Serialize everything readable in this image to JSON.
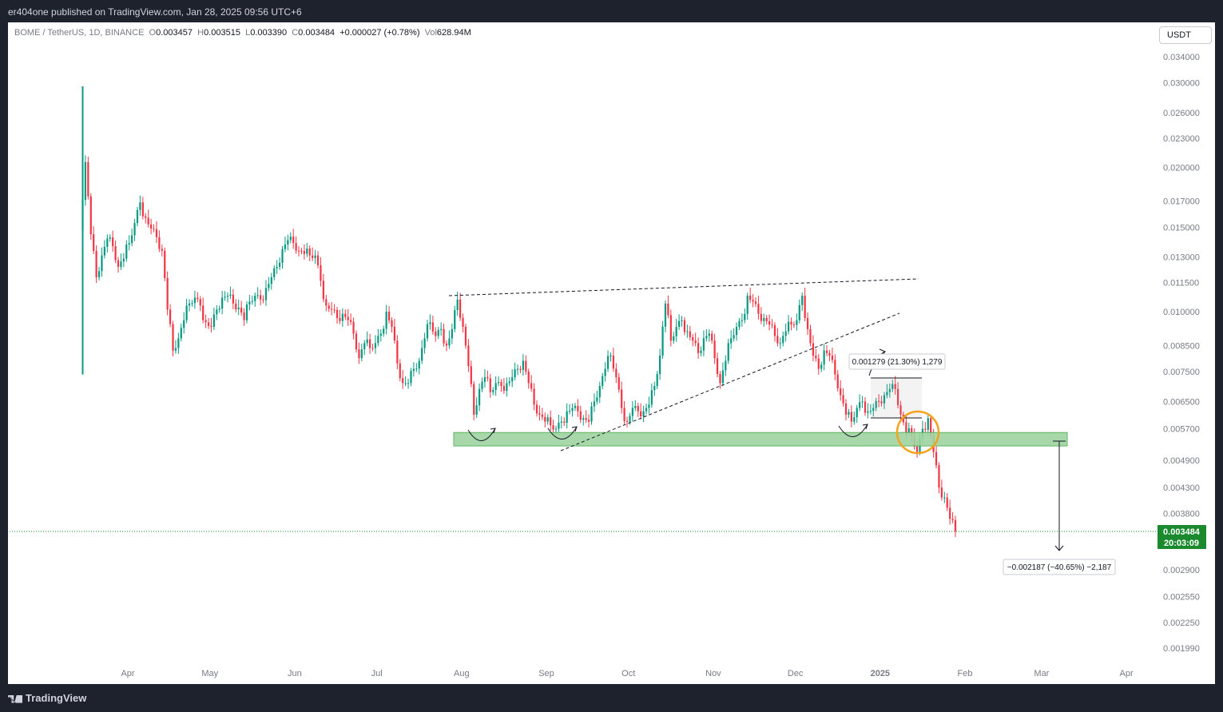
{
  "header": {
    "published": "er404one published on TradingView.com, Jan 28, 2025 09:56 UTC+6"
  },
  "legend": {
    "symbol": "BOME / TetherUS, 1D, BINANCE",
    "o_label": "O",
    "o": "0.003457",
    "h_label": "H",
    "h": "0.003515",
    "l_label": "L",
    "l": "0.003390",
    "c_label": "C",
    "c": "0.003484",
    "change": "+0.000027 (+0.78%)",
    "vol_label": "Vol",
    "vol": "628.94M"
  },
  "currency_button": "USDT",
  "footer": {
    "brand": "TradingView"
  },
  "colors": {
    "up": "#089981",
    "down": "#f23645",
    "support_zone": "#9fd4a0",
    "highlight_circle": "#f7a21b",
    "price_badge": "#1b8a2f"
  },
  "chart_data": {
    "type": "candlestick",
    "symbol": "BOME/USDT",
    "interval": "1D",
    "y_scale": "log",
    "y_ticks": [
      "0.034000",
      "0.030000",
      "0.026000",
      "0.023000",
      "0.020000",
      "0.017000",
      "0.015000",
      "0.013000",
      "0.011500",
      "0.010000",
      "0.008500",
      "0.007500",
      "0.006500",
      "0.005700",
      "0.004900",
      "0.004300",
      "0.003800",
      "0.002900",
      "0.002550",
      "0.002250",
      "0.001990"
    ],
    "x_ticks": [
      "Apr",
      "May",
      "Jun",
      "Jul",
      "Aug",
      "Sep",
      "Oct",
      "Nov",
      "Dec",
      "2025",
      "Feb",
      "Mar",
      "Apr"
    ],
    "current_price": "0.003484",
    "countdown": "20:03:09",
    "support_zone": {
      "low": 0.00525,
      "high": 0.0056
    },
    "measure_up": {
      "label": "0.001279 (21.30%) 1,279"
    },
    "measure_down": {
      "label": "−0.002187 (−40.65%) −2,187"
    },
    "series": [
      {
        "t": "2024-03-16",
        "c": 0.0205
      },
      {
        "t": "2024-03-18",
        "c": 0.0145
      },
      {
        "t": "2024-03-20",
        "c": 0.0118
      },
      {
        "t": "2024-03-22",
        "c": 0.0131
      },
      {
        "t": "2024-03-24",
        "c": 0.0142
      },
      {
        "t": "2024-03-26",
        "c": 0.0137
      },
      {
        "t": "2024-03-28",
        "c": 0.0124
      },
      {
        "t": "2024-03-30",
        "c": 0.0129
      },
      {
        "t": "2024-04-01",
        "c": 0.0139
      },
      {
        "t": "2024-04-03",
        "c": 0.0153
      },
      {
        "t": "2024-04-05",
        "c": 0.0169
      },
      {
        "t": "2024-04-07",
        "c": 0.0157
      },
      {
        "t": "2024-04-09",
        "c": 0.0149
      },
      {
        "t": "2024-04-11",
        "c": 0.0143
      },
      {
        "t": "2024-04-13",
        "c": 0.0134
      },
      {
        "t": "2024-04-15",
        "c": 0.0101
      },
      {
        "t": "2024-04-17",
        "c": 0.0083
      },
      {
        "t": "2024-04-19",
        "c": 0.0088
      },
      {
        "t": "2024-04-21",
        "c": 0.0096
      },
      {
        "t": "2024-04-23",
        "c": 0.0104
      },
      {
        "t": "2024-04-25",
        "c": 0.0107
      },
      {
        "t": "2024-04-27",
        "c": 0.0103
      },
      {
        "t": "2024-04-29",
        "c": 0.0095
      },
      {
        "t": "2024-05-01",
        "c": 0.0093
      },
      {
        "t": "2024-05-03",
        "c": 0.0101
      },
      {
        "t": "2024-05-05",
        "c": 0.0107
      },
      {
        "t": "2024-05-07",
        "c": 0.0108
      },
      {
        "t": "2024-05-09",
        "c": 0.0104
      },
      {
        "t": "2024-05-11",
        "c": 0.0102
      },
      {
        "t": "2024-05-13",
        "c": 0.0096
      },
      {
        "t": "2024-05-15",
        "c": 0.0105
      },
      {
        "t": "2024-05-17",
        "c": 0.0108
      },
      {
        "t": "2024-05-19",
        "c": 0.0106
      },
      {
        "t": "2024-05-21",
        "c": 0.0112
      },
      {
        "t": "2024-05-23",
        "c": 0.0118
      },
      {
        "t": "2024-05-25",
        "c": 0.0124
      },
      {
        "t": "2024-05-27",
        "c": 0.0135
      },
      {
        "t": "2024-05-29",
        "c": 0.0141
      },
      {
        "t": "2024-05-31",
        "c": 0.0139
      },
      {
        "t": "2024-06-02",
        "c": 0.0134
      },
      {
        "t": "2024-06-04",
        "c": 0.0132
      },
      {
        "t": "2024-06-06",
        "c": 0.0131
      },
      {
        "t": "2024-06-08",
        "c": 0.0131
      },
      {
        "t": "2024-06-10",
        "c": 0.0116
      },
      {
        "t": "2024-06-12",
        "c": 0.0103
      },
      {
        "t": "2024-06-14",
        "c": 0.0101
      },
      {
        "t": "2024-06-16",
        "c": 0.0097
      },
      {
        "t": "2024-06-18",
        "c": 0.0099
      },
      {
        "t": "2024-06-20",
        "c": 0.0096
      },
      {
        "t": "2024-06-22",
        "c": 0.009
      },
      {
        "t": "2024-06-24",
        "c": 0.008
      },
      {
        "t": "2024-06-26",
        "c": 0.0086
      },
      {
        "t": "2024-06-28",
        "c": 0.0084
      },
      {
        "t": "2024-06-30",
        "c": 0.0086
      },
      {
        "t": "2024-07-02",
        "c": 0.009
      },
      {
        "t": "2024-07-04",
        "c": 0.01
      },
      {
        "t": "2024-07-06",
        "c": 0.0093
      },
      {
        "t": "2024-07-08",
        "c": 0.0078
      },
      {
        "t": "2024-07-10",
        "c": 0.0071
      },
      {
        "t": "2024-07-12",
        "c": 0.0071
      },
      {
        "t": "2024-07-14",
        "c": 0.0076
      },
      {
        "t": "2024-07-16",
        "c": 0.0079
      },
      {
        "t": "2024-07-18",
        "c": 0.0088
      },
      {
        "t": "2024-07-20",
        "c": 0.0095
      },
      {
        "t": "2024-07-22",
        "c": 0.0089
      },
      {
        "t": "2024-07-24",
        "c": 0.0092
      },
      {
        "t": "2024-07-26",
        "c": 0.0085
      },
      {
        "t": "2024-07-28",
        "c": 0.0092
      },
      {
        "t": "2024-07-30",
        "c": 0.0106
      },
      {
        "t": "2024-08-01",
        "c": 0.0093
      },
      {
        "t": "2024-08-03",
        "c": 0.0077
      },
      {
        "t": "2024-08-05",
        "c": 0.0061
      },
      {
        "t": "2024-08-07",
        "c": 0.0069
      },
      {
        "t": "2024-08-09",
        "c": 0.0073
      },
      {
        "t": "2024-08-11",
        "c": 0.0068
      },
      {
        "t": "2024-08-13",
        "c": 0.0071
      },
      {
        "t": "2024-08-15",
        "c": 0.007
      },
      {
        "t": "2024-08-17",
        "c": 0.0071
      },
      {
        "t": "2024-08-19",
        "c": 0.0073
      },
      {
        "t": "2024-08-21",
        "c": 0.0076
      },
      {
        "t": "2024-08-23",
        "c": 0.0079
      },
      {
        "t": "2024-08-25",
        "c": 0.0071
      },
      {
        "t": "2024-08-27",
        "c": 0.0064
      },
      {
        "t": "2024-08-29",
        "c": 0.0061
      },
      {
        "t": "2024-08-31",
        "c": 0.0059
      },
      {
        "t": "2024-09-02",
        "c": 0.0058
      },
      {
        "t": "2024-09-04",
        "c": 0.0057
      },
      {
        "t": "2024-09-06",
        "c": 0.0059
      },
      {
        "t": "2024-09-08",
        "c": 0.0062
      },
      {
        "t": "2024-09-10",
        "c": 0.0063
      },
      {
        "t": "2024-09-12",
        "c": 0.0062
      },
      {
        "t": "2024-09-14",
        "c": 0.006
      },
      {
        "t": "2024-09-16",
        "c": 0.0059
      },
      {
        "t": "2024-09-18",
        "c": 0.0065
      },
      {
        "t": "2024-09-20",
        "c": 0.007
      },
      {
        "t": "2024-09-22",
        "c": 0.0076
      },
      {
        "t": "2024-09-24",
        "c": 0.0081
      },
      {
        "t": "2024-09-26",
        "c": 0.0073
      },
      {
        "t": "2024-09-28",
        "c": 0.0063
      },
      {
        "t": "2024-09-30",
        "c": 0.0059
      },
      {
        "t": "2024-10-02",
        "c": 0.0063
      },
      {
        "t": "2024-10-04",
        "c": 0.0062
      },
      {
        "t": "2024-10-06",
        "c": 0.0062
      },
      {
        "t": "2024-10-08",
        "c": 0.0064
      },
      {
        "t": "2024-10-10",
        "c": 0.007
      },
      {
        "t": "2024-10-12",
        "c": 0.0081
      },
      {
        "t": "2024-10-14",
        "c": 0.0104
      },
      {
        "t": "2024-10-16",
        "c": 0.0087
      },
      {
        "t": "2024-10-18",
        "c": 0.0093
      },
      {
        "t": "2024-10-20",
        "c": 0.0096
      },
      {
        "t": "2024-10-22",
        "c": 0.0091
      },
      {
        "t": "2024-10-24",
        "c": 0.0087
      },
      {
        "t": "2024-10-26",
        "c": 0.0082
      },
      {
        "t": "2024-10-28",
        "c": 0.0088
      },
      {
        "t": "2024-10-30",
        "c": 0.009
      },
      {
        "t": "2024-11-01",
        "c": 0.008
      },
      {
        "t": "2024-11-03",
        "c": 0.0071
      },
      {
        "t": "2024-11-05",
        "c": 0.0079
      },
      {
        "t": "2024-11-07",
        "c": 0.0088
      },
      {
        "t": "2024-11-09",
        "c": 0.0093
      },
      {
        "t": "2024-11-11",
        "c": 0.0096
      },
      {
        "t": "2024-11-13",
        "c": 0.0108
      },
      {
        "t": "2024-11-15",
        "c": 0.0105
      },
      {
        "t": "2024-11-17",
        "c": 0.0099
      },
      {
        "t": "2024-11-19",
        "c": 0.0097
      },
      {
        "t": "2024-11-21",
        "c": 0.0094
      },
      {
        "t": "2024-11-23",
        "c": 0.0089
      },
      {
        "t": "2024-11-25",
        "c": 0.0086
      },
      {
        "t": "2024-11-27",
        "c": 0.0091
      },
      {
        "t": "2024-11-29",
        "c": 0.0094
      },
      {
        "t": "2024-12-01",
        "c": 0.0096
      },
      {
        "t": "2024-12-03",
        "c": 0.0108
      },
      {
        "t": "2024-12-05",
        "c": 0.0092
      },
      {
        "t": "2024-12-07",
        "c": 0.0081
      },
      {
        "t": "2024-12-09",
        "c": 0.0076
      },
      {
        "t": "2024-12-11",
        "c": 0.0083
      },
      {
        "t": "2024-12-13",
        "c": 0.0081
      },
      {
        "t": "2024-12-15",
        "c": 0.0074
      },
      {
        "t": "2024-12-17",
        "c": 0.0067
      },
      {
        "t": "2024-12-19",
        "c": 0.0061
      },
      {
        "t": "2024-12-21",
        "c": 0.0059
      },
      {
        "t": "2024-12-23",
        "c": 0.0063
      },
      {
        "t": "2024-12-25",
        "c": 0.0065
      },
      {
        "t": "2024-12-27",
        "c": 0.0062
      },
      {
        "t": "2024-12-29",
        "c": 0.0063
      },
      {
        "t": "2024-12-31",
        "c": 0.0065
      },
      {
        "t": "2025-01-02",
        "c": 0.0067
      },
      {
        "t": "2025-01-04",
        "c": 0.0069
      },
      {
        "t": "2025-01-06",
        "c": 0.0069
      },
      {
        "t": "2025-01-08",
        "c": 0.0061
      },
      {
        "t": "2025-01-10",
        "c": 0.0056
      },
      {
        "t": "2025-01-12",
        "c": 0.0055
      },
      {
        "t": "2025-01-14",
        "c": 0.0051
      },
      {
        "t": "2025-01-16",
        "c": 0.0057
      },
      {
        "t": "2025-01-18",
        "c": 0.006
      },
      {
        "t": "2025-01-20",
        "c": 0.0051
      },
      {
        "t": "2025-01-22",
        "c": 0.0043
      },
      {
        "t": "2025-01-24",
        "c": 0.0041
      },
      {
        "t": "2025-01-26",
        "c": 0.0037
      },
      {
        "t": "2025-01-28",
        "c": 0.003484
      }
    ]
  }
}
